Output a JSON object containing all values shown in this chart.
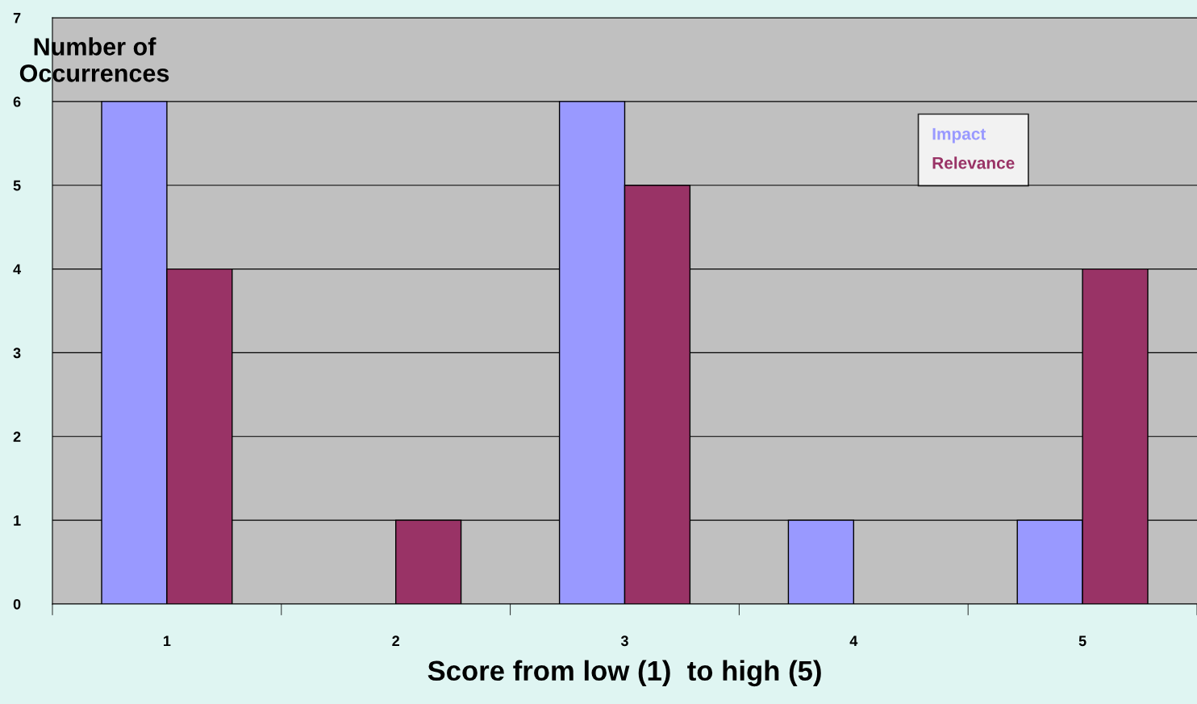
{
  "chart_data": {
    "type": "bar",
    "xlabel": "Score from low (1)  to high (5)",
    "ylabel": "Number of Occurrences",
    "categories": [
      "1",
      "2",
      "3",
      "4",
      "5"
    ],
    "series": [
      {
        "name": "Impact",
        "color": "#9999ff",
        "values": [
          6,
          0,
          6,
          1,
          1
        ]
      },
      {
        "name": "Relevance",
        "color": "#993366",
        "values": [
          4,
          1,
          5,
          0,
          4
        ]
      }
    ],
    "ylim": [
      0,
      7
    ],
    "yticks": [
      0,
      1,
      2,
      3,
      4,
      5,
      6,
      7
    ],
    "grid": "y",
    "legend": "top right"
  }
}
